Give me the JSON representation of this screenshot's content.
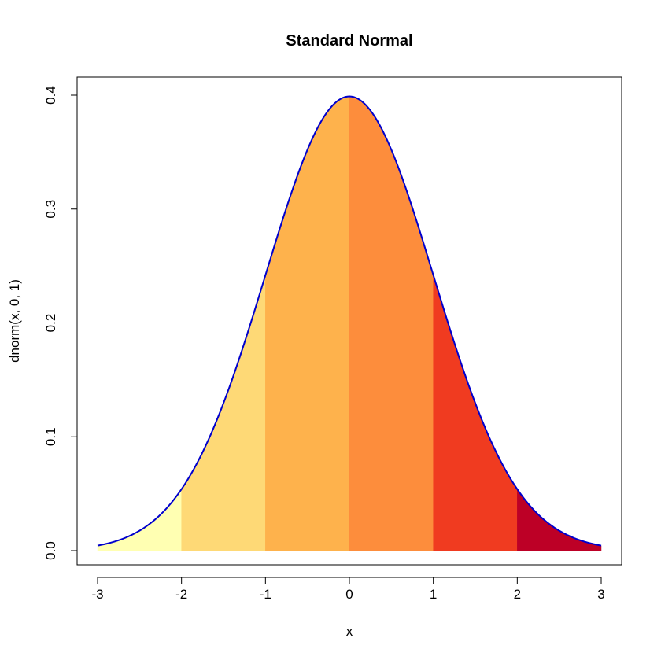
{
  "chart_data": {
    "type": "area",
    "title": "Standard Normal",
    "xlabel": "x",
    "ylabel": "dnorm(x, 0, 1)",
    "xlim": [
      -3,
      3
    ],
    "ylim": [
      0,
      0.4
    ],
    "x_ticks": [
      -3,
      -2,
      -1,
      0,
      1,
      2,
      3
    ],
    "y_ticks": [
      0.0,
      0.1,
      0.2,
      0.3,
      0.4
    ],
    "x_tick_labels": [
      "-3",
      "-2",
      "-1",
      "0",
      "1",
      "2",
      "3"
    ],
    "y_tick_labels": [
      "0.0",
      "0.1",
      "0.2",
      "0.3",
      "0.4"
    ],
    "x": [
      -3.0,
      -2.5,
      -2.0,
      -1.5,
      -1.0,
      -0.5,
      0.0,
      0.5,
      1.0,
      1.5,
      2.0,
      2.5,
      3.0
    ],
    "values": [
      0.0044,
      0.0175,
      0.054,
      0.1295,
      0.242,
      0.3521,
      0.3989,
      0.3521,
      0.242,
      0.1295,
      0.054,
      0.0175,
      0.0044
    ],
    "regions": [
      {
        "from": -3,
        "to": -2,
        "color": "#FFFFB2"
      },
      {
        "from": -2,
        "to": -1,
        "color": "#FED976"
      },
      {
        "from": -1,
        "to": 0,
        "color": "#FEB24C"
      },
      {
        "from": 0,
        "to": 1,
        "color": "#FD8D3C"
      },
      {
        "from": 1,
        "to": 2,
        "color": "#F03B20"
      },
      {
        "from": 2,
        "to": 3,
        "color": "#BD0026"
      }
    ],
    "line_color": "#0000CD",
    "grid": false
  }
}
